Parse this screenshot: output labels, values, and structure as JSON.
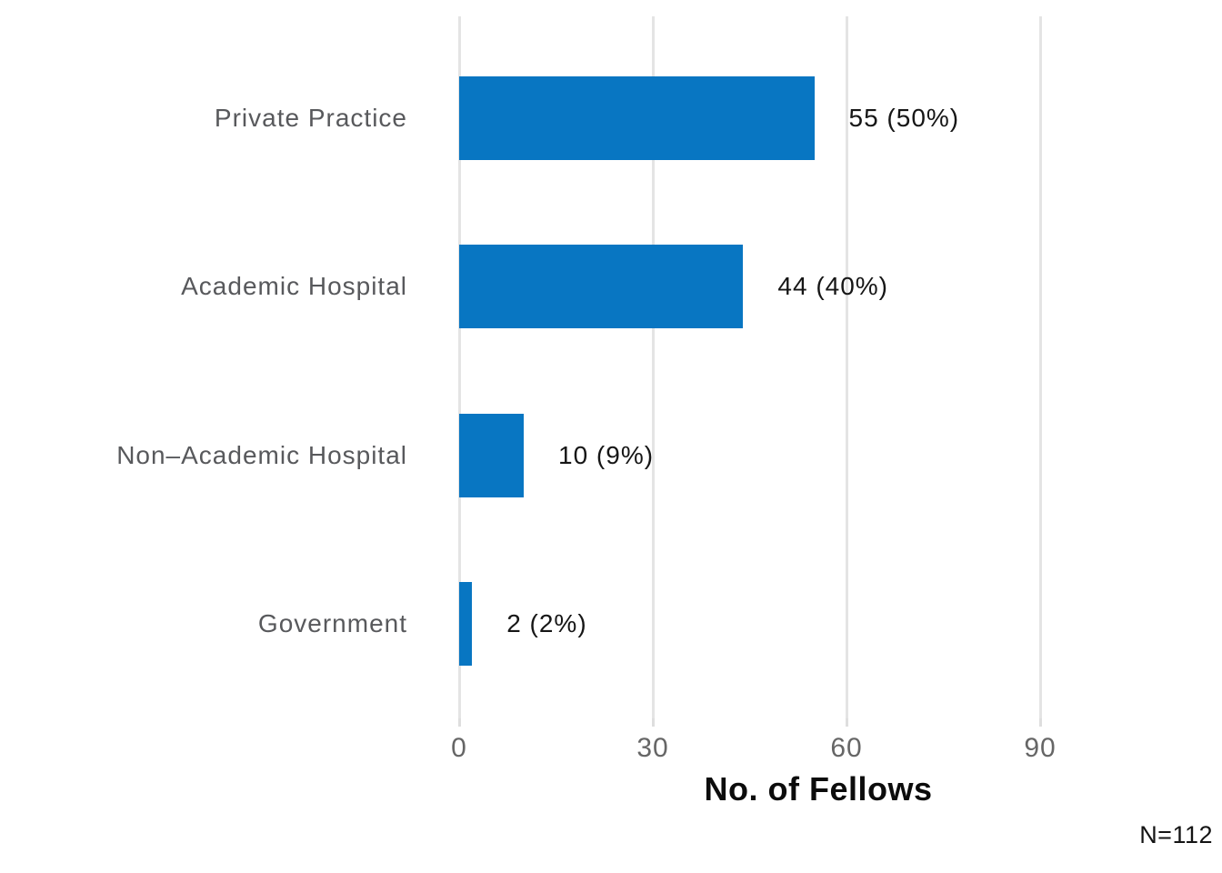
{
  "chart_data": {
    "type": "bar",
    "orientation": "horizontal",
    "title": "",
    "categories": [
      "Private Practice",
      "Academic Hospital",
      "Non–Academic Hospital",
      "Government"
    ],
    "values": [
      55,
      44,
      10,
      2
    ],
    "percentages": [
      50,
      40,
      9,
      2
    ],
    "value_labels": [
      "55 (50%)",
      "44 (40%)",
      "10 (9%)",
      "2 (2%)"
    ],
    "xlabel": "No. of Fellows",
    "ylabel": "",
    "xlim": [
      0,
      112
    ],
    "xticks": [
      0,
      30,
      60,
      90
    ],
    "grid": true,
    "legend": false,
    "annotation": "N=112",
    "colors": {
      "bar": "#0876c2",
      "gridline": "#e4e4e4",
      "category_label": "#58595c",
      "value_label": "#161616",
      "tick_label": "#666666",
      "axis_title": "#0c0c0c"
    }
  }
}
